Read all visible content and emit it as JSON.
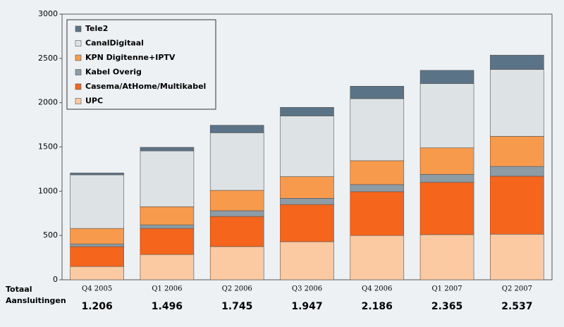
{
  "chart_data": {
    "type": "stacked_bar",
    "categories": [
      "Q4 2005",
      "Q1 2006",
      "Q2 2006",
      "Q3 2006",
      "Q4 2006",
      "Q1 2007",
      "Q2 2007"
    ],
    "series": [
      {
        "name": "UPC",
        "color": "#fbc9a2",
        "values": [
          150,
          285,
          375,
          430,
          500,
          510,
          515
        ]
      },
      {
        "name": "Casema/AtHome/Multikabel",
        "color": "#f5651c",
        "values": [
          225,
          295,
          340,
          420,
          495,
          590,
          655
        ]
      },
      {
        "name": "Kabel Overig",
        "color": "#8d9ca5",
        "values": [
          30,
          40,
          65,
          70,
          80,
          90,
          110
        ]
      },
      {
        "name": "KPN Digitenne+IPTV",
        "color": "#f89a4c",
        "values": [
          175,
          205,
          230,
          245,
          270,
          300,
          340
        ]
      },
      {
        "name": "CanalDigitaal",
        "color": "#dde3e5",
        "values": [
          605,
          630,
          650,
          685,
          700,
          725,
          755
        ]
      },
      {
        "name": "Tele2",
        "color": "#5b7386",
        "values": [
          21,
          41,
          85,
          97,
          141,
          150,
          162
        ]
      }
    ],
    "ylim": [
      0,
      3000
    ],
    "yticks": [
      0,
      500,
      1000,
      1500,
      2000,
      2500,
      3000
    ],
    "legend": "upper left",
    "total_label": [
      "Totaal",
      "Aansluitingen"
    ],
    "totals": [
      {
        "value": 1206,
        "label": "1.206"
      },
      {
        "value": 1496,
        "label": "1.496"
      },
      {
        "value": 1745,
        "label": "1.745"
      },
      {
        "value": 1947,
        "label": "1.947"
      },
      {
        "value": 2186,
        "label": "2.186"
      },
      {
        "value": 2365,
        "label": "2.365"
      },
      {
        "value": 2537,
        "label": "2.537"
      }
    ]
  }
}
